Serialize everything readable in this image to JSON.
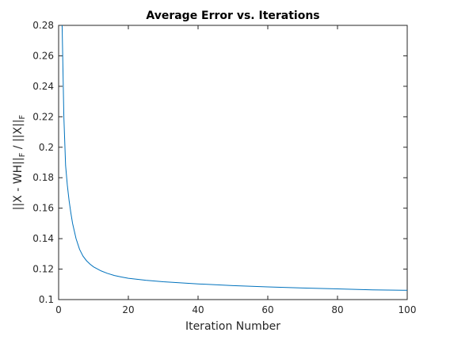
{
  "chart_data": {
    "type": "line",
    "title": "Average Error vs. Iterations",
    "xlabel": "Iteration Number",
    "ylabel": {
      "parts": [
        "||X - WH||",
        "F",
        " / ||X||",
        "F"
      ],
      "text": "||X - WH||F / ||X||F"
    },
    "xlim": [
      0,
      100
    ],
    "ylim": [
      0.1,
      0.28
    ],
    "xticks": [
      0,
      20,
      40,
      60,
      80,
      100
    ],
    "xtick_labels": [
      "0",
      "20",
      "40",
      "60",
      "80",
      "100"
    ],
    "yticks": [
      0.1,
      0.12,
      0.14,
      0.16,
      0.18,
      0.2,
      0.22,
      0.24,
      0.26,
      0.28
    ],
    "ytick_labels": [
      "0.1",
      "0.12",
      "0.14",
      "0.16",
      "0.18",
      "0.2",
      "0.22",
      "0.24",
      "0.26",
      "0.28"
    ],
    "grid": false,
    "line_color": "#0072BD",
    "series": [
      {
        "x": [
          1,
          1.5,
          2,
          2.5,
          3,
          3.5,
          4,
          5,
          6,
          7,
          8,
          9,
          10,
          12,
          14,
          16,
          18,
          20,
          25,
          30,
          35,
          40,
          50,
          60,
          70,
          80,
          90,
          100
        ],
        "values": [
          0.28,
          0.22,
          0.188,
          0.175,
          0.165,
          0.157,
          0.15,
          0.14,
          0.133,
          0.1285,
          0.1255,
          0.1233,
          0.1215,
          0.119,
          0.1172,
          0.1158,
          0.1148,
          0.114,
          0.1127,
          0.1117,
          0.111,
          0.1103,
          0.1092,
          0.1083,
          0.1076,
          0.107,
          0.1064,
          0.1061
        ]
      }
    ]
  }
}
